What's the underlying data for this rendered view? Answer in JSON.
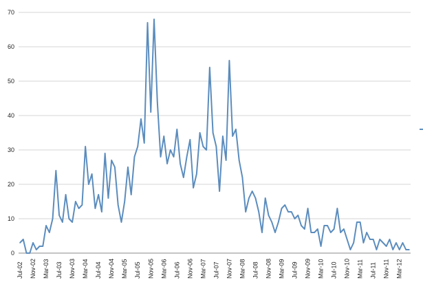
{
  "chart_data": {
    "type": "line",
    "title": "",
    "xlabel": "",
    "ylabel": "",
    "ylim": [
      0,
      70
    ],
    "yticks": [
      0,
      10,
      20,
      30,
      40,
      50,
      60,
      70
    ],
    "grid": true,
    "legend": "right",
    "line_color": "#5b8cbd",
    "x_tick_labels": [
      "Jul-02",
      "Nov-02",
      "Mar-03",
      "Jul-03",
      "Nov-03",
      "Mar-04",
      "Jul-04",
      "Nov-04",
      "Mar-05",
      "Jul-05",
      "Nov-05",
      "Mar-06",
      "Jul-06",
      "Nov-06",
      "Mar-07",
      "Jul-07",
      "Nov-07",
      "Mar-08",
      "Jul-08",
      "Nov-08",
      "Mar-09",
      "Jul-09",
      "Nov-09",
      "Mar-10",
      "Jul-10",
      "Nov-10",
      "Mar-11",
      "Jul-11",
      "Nov-11",
      "Mar-12"
    ],
    "series": [
      {
        "values": [
          3,
          4,
          0,
          0,
          3,
          1,
          2,
          2,
          8,
          6,
          10,
          24,
          11,
          9,
          17,
          10,
          9,
          15,
          13,
          14,
          31,
          20,
          23,
          13,
          17,
          12,
          29,
          16,
          27,
          25,
          14,
          9,
          15,
          25,
          17,
          28,
          31,
          39,
          32,
          67,
          41,
          68,
          44,
          28,
          34,
          26,
          30,
          28,
          36,
          26,
          22,
          28,
          33,
          19,
          23,
          35,
          31,
          30,
          54,
          35,
          31,
          18,
          34,
          27,
          56,
          34,
          36,
          27,
          22,
          12,
          16,
          18,
          16,
          12,
          6,
          16,
          11,
          9,
          6,
          9,
          13,
          14,
          12,
          12,
          10,
          11,
          8,
          7,
          13,
          6,
          6,
          7,
          2,
          8,
          8,
          6,
          7,
          13,
          6,
          7,
          4,
          1,
          3,
          9,
          9,
          3,
          6,
          4,
          4,
          1,
          4,
          3,
          2,
          4,
          1,
          3,
          1,
          3,
          1,
          1
        ]
      }
    ]
  }
}
